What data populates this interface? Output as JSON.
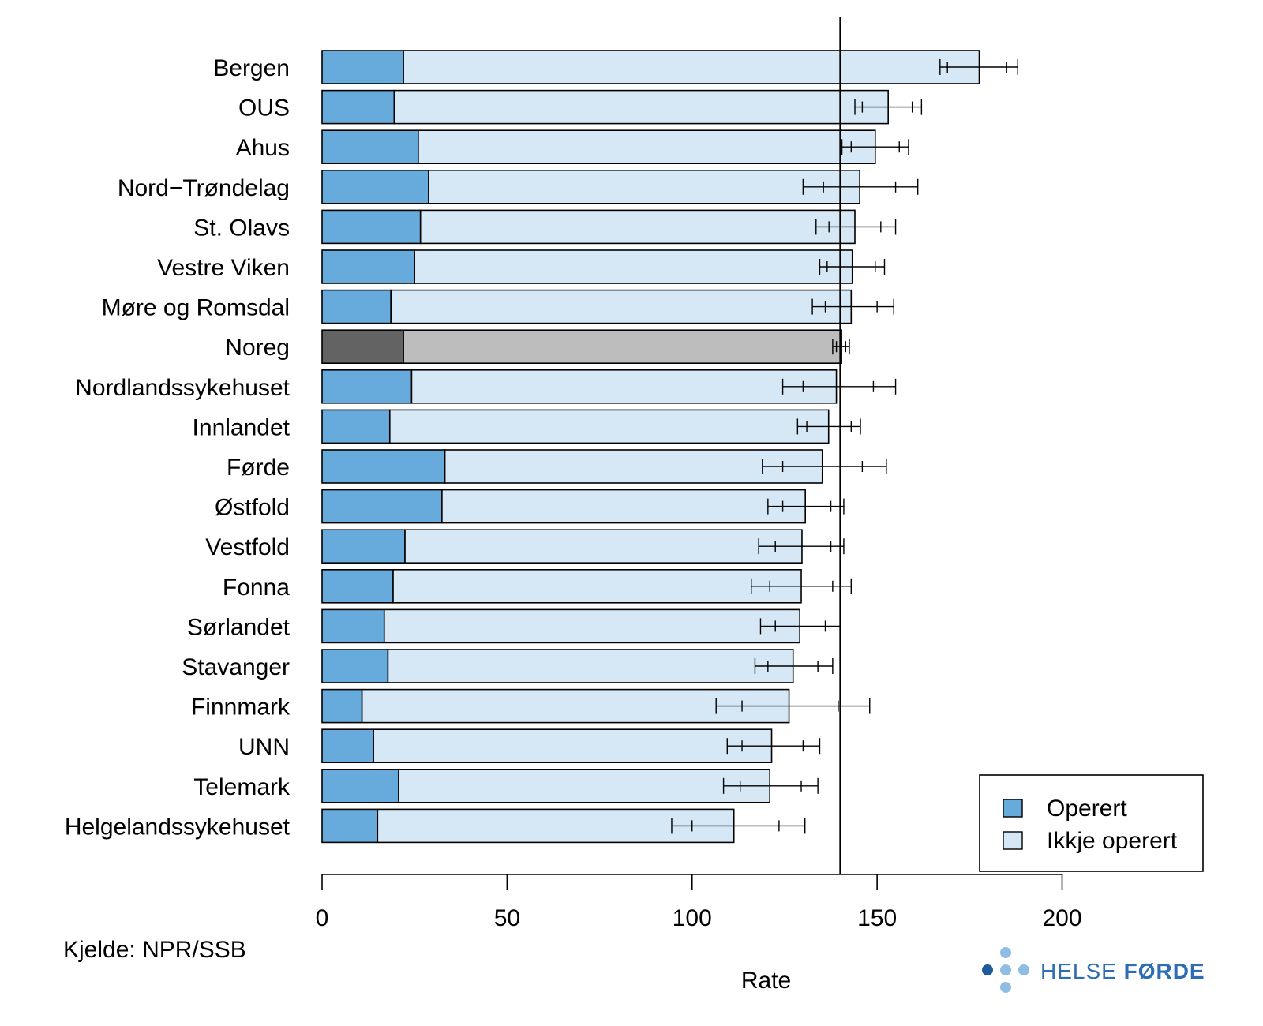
{
  "chart_data": {
    "type": "bar",
    "orientation": "horizontal",
    "stacked": true,
    "categories": [
      "Bergen",
      "OUS",
      "Ahus",
      "Nord−Trøndelag",
      "St. Olavs",
      "Vestre Viken",
      "Møre og Romsdal",
      "Noreg",
      "Nordlandssykehuset",
      "Innlandet",
      "Førde",
      "Østfold",
      "Vestfold",
      "Fonna",
      "Sørlandet",
      "Stavanger",
      "Finnmark",
      "UNN",
      "Telemark",
      "Helgelandssykehuset"
    ],
    "highlight_category": "Noreg",
    "series": [
      {
        "name": "Operert",
        "values": [
          22,
          19.5,
          26,
          28.8,
          26.6,
          25,
          18.6,
          22,
          24.2,
          18.3,
          33.2,
          32.4,
          22.4,
          19.2,
          16.8,
          17.8,
          10.8,
          13.9,
          20.7,
          15
        ]
      },
      {
        "name": "Ikkje operert",
        "values": [
          155.6,
          133.5,
          123.5,
          116.5,
          117.4,
          118.3,
          124.4,
          118.4,
          114.8,
          118.6,
          102,
          98.2,
          107.3,
          110.3,
          112.3,
          109.5,
          115.4,
          107.6,
          100.3,
          96.3
        ]
      }
    ],
    "totals": [
      177.6,
      153,
      149.5,
      145.3,
      144,
      143.3,
      143,
      140.4,
      139,
      136.9,
      135.2,
      130.6,
      129.7,
      129.5,
      129.1,
      127.3,
      126.2,
      121.5,
      121,
      111.3
    ],
    "inner_interval": [
      [
        169,
        185
      ],
      [
        146,
        159.5
      ],
      [
        143,
        156
      ],
      [
        135.5,
        155
      ],
      [
        137,
        151
      ],
      [
        136.5,
        149.5
      ],
      [
        136,
        150
      ],
      [
        139,
        141.5
      ],
      [
        130,
        149
      ],
      [
        131,
        143
      ],
      [
        124.5,
        146
      ],
      [
        124.5,
        137.5
      ],
      [
        122.5,
        137.5
      ],
      [
        121,
        138
      ],
      [
        122.5,
        136
      ],
      [
        120.5,
        134
      ],
      [
        113.5,
        139.5
      ],
      [
        113.5,
        130
      ],
      [
        113,
        129.5
      ],
      [
        100,
        123.5
      ]
    ],
    "outer_interval": [
      [
        167,
        188
      ],
      [
        144,
        162
      ],
      [
        140.5,
        158.5
      ],
      [
        130,
        161
      ],
      [
        133.5,
        155
      ],
      [
        134.5,
        152
      ],
      [
        132.5,
        154.5
      ],
      [
        138,
        142.5
      ],
      [
        124.5,
        155
      ],
      [
        128.5,
        145.5
      ],
      [
        119,
        152.5
      ],
      [
        120.5,
        141
      ],
      [
        118,
        141
      ],
      [
        116,
        143
      ],
      [
        118.5,
        140
      ],
      [
        117,
        138
      ],
      [
        106.5,
        148
      ],
      [
        109.5,
        134.5
      ],
      [
        108.5,
        134
      ],
      [
        94.5,
        130.5
      ]
    ],
    "reference_line": 140,
    "x_ticks": [
      0,
      50,
      100,
      150,
      200
    ],
    "xlim": [
      0,
      240
    ],
    "xlabel": "Rate",
    "legend_position": "bottom-right",
    "colors": {
      "operert": "#67abdd",
      "ikkje_operert": "#d6e8f6",
      "noreg_operert": "#636363",
      "noreg_ikkje_operert": "#bdbdbd"
    }
  },
  "source_note": "Kjelde: NPR/SSB",
  "logo": {
    "text_light": "HELSE ",
    "text_bold": "FØRDE",
    "colors": {
      "dark": "#1f5a9d",
      "light": "#8fbde3",
      "text": "#2e6db4"
    }
  }
}
